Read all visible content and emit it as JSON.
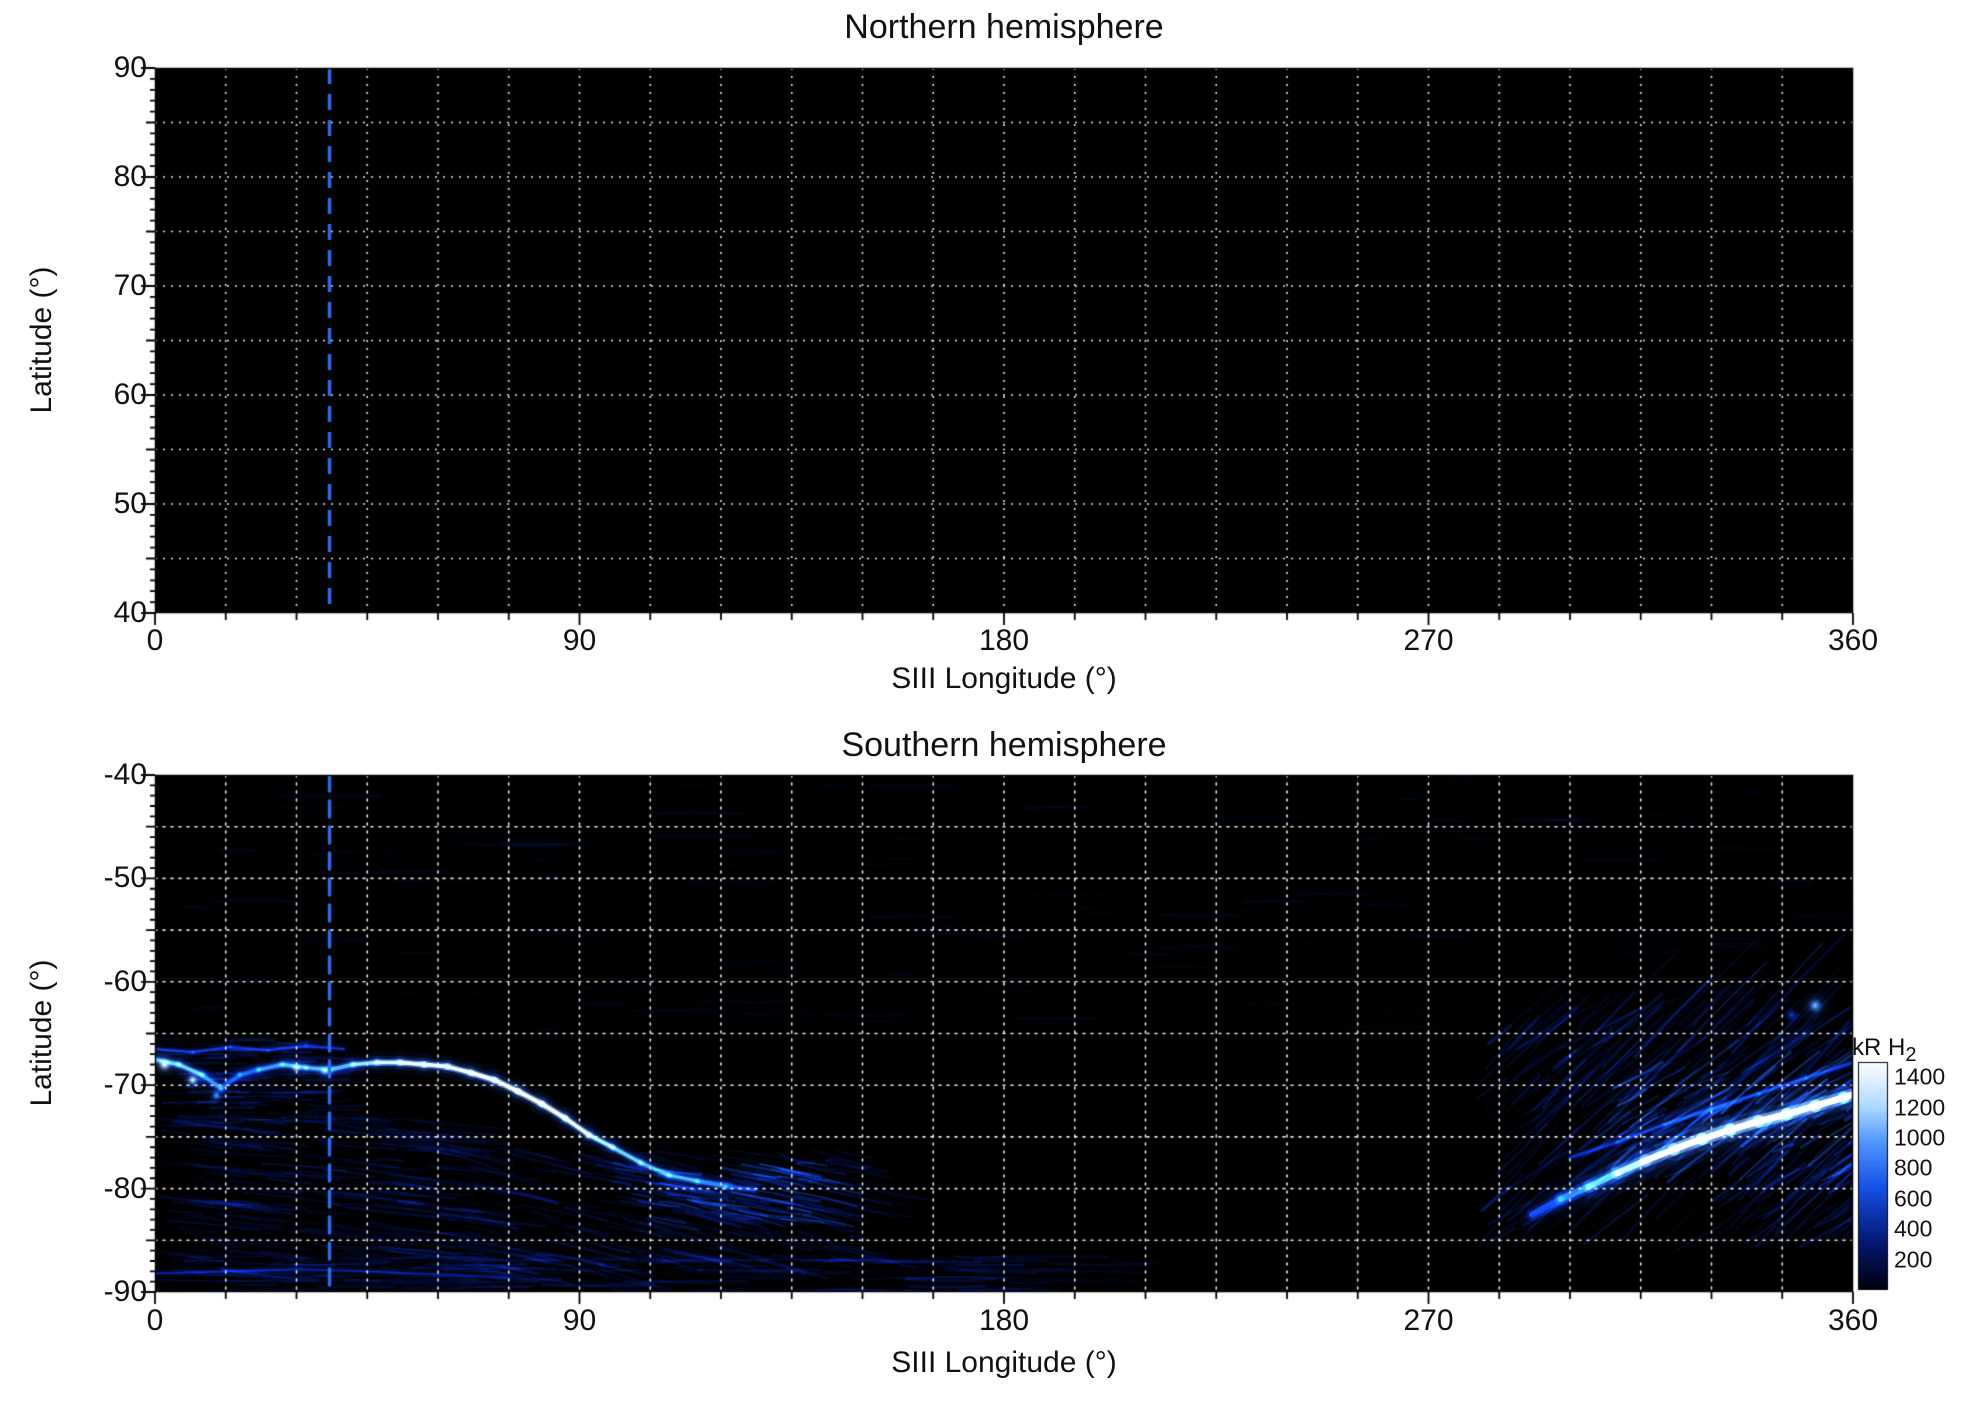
{
  "chart_data": [
    {
      "type": "heatmap",
      "title": "Northern hemisphere",
      "xlabel": "SIII Longitude (°)",
      "ylabel": "Latitude (°)",
      "xlim": [
        0,
        360
      ],
      "ylim": [
        40,
        90
      ],
      "xticks": [
        0,
        90,
        180,
        270,
        360
      ],
      "yticks": [
        90,
        80,
        70,
        60,
        50,
        40
      ],
      "grid": {
        "x_step": 15,
        "y_step": 5,
        "style": "dotted",
        "color": "#ffffff"
      },
      "marker_line": {
        "longitude": 37,
        "color": "#2b6bf0",
        "style": "dashed"
      },
      "background": "#000000",
      "arcs": [],
      "streak_fields": [],
      "spots": []
    },
    {
      "type": "heatmap",
      "title": "Southern hemisphere",
      "xlabel": "SIII Longitude (°)",
      "ylabel": "Latitude (°)",
      "xlim": [
        0,
        360
      ],
      "ylim": [
        -90,
        -40
      ],
      "xticks": [
        0,
        90,
        180,
        270,
        360
      ],
      "yticks": [
        -40,
        -50,
        -60,
        -70,
        -80,
        -90
      ],
      "grid": {
        "x_step": 15,
        "y_step": 5,
        "style": "dotted",
        "color": "#ffffff"
      },
      "marker_line": {
        "longitude": 37,
        "color": "#2b6bf0",
        "style": "dashed"
      },
      "background": "#000000",
      "arcs": [
        {
          "w": 5,
          "points": [
            [
              0,
              -67.5,
              800
            ],
            [
              5,
              -68,
              1000
            ],
            [
              10,
              -69,
              900
            ],
            [
              14,
              -70.3,
              600
            ],
            [
              18,
              -69,
              520
            ],
            [
              22,
              -68.5,
              700
            ],
            [
              27,
              -68,
              820
            ],
            [
              32,
              -68.3,
              900
            ],
            [
              37,
              -68.5,
              820
            ],
            [
              42,
              -68,
              920
            ],
            [
              47,
              -67.8,
              1100
            ],
            [
              52,
              -67.8,
              1250
            ],
            [
              57,
              -68,
              1320
            ],
            [
              62,
              -68.2,
              1250
            ],
            [
              67,
              -68.8,
              1350
            ],
            [
              72,
              -69.5,
              1420
            ],
            [
              77,
              -70.6,
              1450
            ],
            [
              82,
              -71.8,
              1430
            ],
            [
              87,
              -73.2,
              1350
            ],
            [
              92,
              -74.8,
              1200
            ],
            [
              97,
              -76,
              1000
            ],
            [
              103,
              -77.5,
              900
            ],
            [
              109,
              -78.7,
              850
            ],
            [
              115,
              -79.3,
              780
            ],
            [
              121,
              -79.8,
              640
            ],
            [
              127,
              -80.1,
              430
            ]
          ]
        },
        {
          "w": 9,
          "points": [
            [
              292,
              -82.5,
              380
            ],
            [
              298,
              -81,
              600
            ],
            [
              304,
              -79.8,
              820
            ],
            [
              310,
              -78.5,
              1020
            ],
            [
              316,
              -77.3,
              1220
            ],
            [
              322,
              -76.2,
              1380
            ],
            [
              328,
              -75.2,
              1460
            ],
            [
              334,
              -74.3,
              1470
            ],
            [
              340,
              -73.5,
              1440
            ],
            [
              346,
              -72.8,
              1420
            ],
            [
              352,
              -72,
              1380
            ],
            [
              358,
              -71.2,
              1320
            ],
            [
              360,
              -70.9,
              1280
            ]
          ]
        },
        {
          "w": 3.5,
          "points": [
            [
              300,
              -77,
              340
            ],
            [
              310,
              -75.5,
              430
            ],
            [
              320,
              -73.8,
              500
            ],
            [
              330,
              -72.3,
              540
            ],
            [
              340,
              -70.8,
              500
            ],
            [
              350,
              -69.3,
              460
            ],
            [
              360,
              -67.8,
              420
            ]
          ]
        },
        {
          "w": 3,
          "points": [
            [
              0,
              -66.5,
              420
            ],
            [
              8,
              -66.8,
              460
            ],
            [
              16,
              -66.3,
              380
            ],
            [
              24,
              -66.6,
              420
            ],
            [
              32,
              -66.2,
              380
            ],
            [
              40,
              -66.5,
              340
            ]
          ]
        },
        {
          "w": 2.5,
          "points": [
            [
              0,
              -88.2,
              300
            ],
            [
              15,
              -88,
              320
            ],
            [
              30,
              -87.8,
              300
            ],
            [
              45,
              -88,
              280
            ],
            [
              60,
              -88.3,
              260
            ],
            [
              75,
              -88.6,
              240
            ]
          ]
        }
      ],
      "streak_fields": [
        {
          "lon": [
            0,
            62
          ],
          "lat": [
            -88,
            -73
          ],
          "n": 240,
          "kR": 260,
          "len": 20,
          "slant": -0.05
        },
        {
          "lon": [
            0,
            34
          ],
          "lat": [
            -74,
            -65.5
          ],
          "n": 110,
          "kR": 360,
          "len": 12,
          "slant": 0
        },
        {
          "lon": [
            60,
            148
          ],
          "lat": [
            -88,
            -76
          ],
          "n": 220,
          "kR": 300,
          "len": 16,
          "slant": -0.1
        },
        {
          "lon": [
            96,
            142
          ],
          "lat": [
            -83,
            -77.5
          ],
          "n": 90,
          "kR": 560,
          "len": 12,
          "slant": -0.08
        },
        {
          "lon": [
            0,
            190
          ],
          "lat": [
            -90,
            -86.5
          ],
          "n": 150,
          "kR": 260,
          "len": 24,
          "slant": 0
        },
        {
          "lon": [
            280,
            360
          ],
          "lat": [
            -86,
            -64
          ],
          "n": 300,
          "kR": 380,
          "len": 16,
          "slant": 0.38
        },
        {
          "lon": [
            302,
            360
          ],
          "lat": [
            -80,
            -70
          ],
          "n": 120,
          "kR": 680,
          "len": 12,
          "slant": 0.3
        },
        {
          "lon": [
            0,
            360
          ],
          "lat": [
            -65,
            -40
          ],
          "n": 160,
          "kR": 120,
          "len": 18,
          "slant": 0
        }
      ],
      "spots": [
        [
          352,
          -62.3,
          1000,
          9
        ],
        [
          347,
          -63.2,
          500,
          7
        ],
        [
          2,
          -68,
          1350,
          8
        ],
        [
          8,
          -69.5,
          1250,
          7
        ],
        [
          13,
          -71,
          900,
          6
        ],
        [
          30,
          -68.3,
          1200,
          6
        ],
        [
          36,
          -68.6,
          1100,
          6
        ]
      ]
    }
  ],
  "colorbar": {
    "label": "kR H",
    "label_sub": "2",
    "ticks": [
      1400,
      1200,
      1000,
      800,
      600,
      400,
      200
    ],
    "vmin": 0,
    "vmax": 1500,
    "colormap": [
      [
        0,
        [
          0,
          0,
          10
        ]
      ],
      [
        0.22,
        [
          5,
          25,
          120
        ]
      ],
      [
        0.45,
        [
          20,
          80,
          230
        ]
      ],
      [
        0.65,
        [
          80,
          150,
          255
        ]
      ],
      [
        0.8,
        [
          170,
          215,
          255
        ]
      ],
      [
        1,
        [
          255,
          255,
          255
        ]
      ]
    ]
  }
}
